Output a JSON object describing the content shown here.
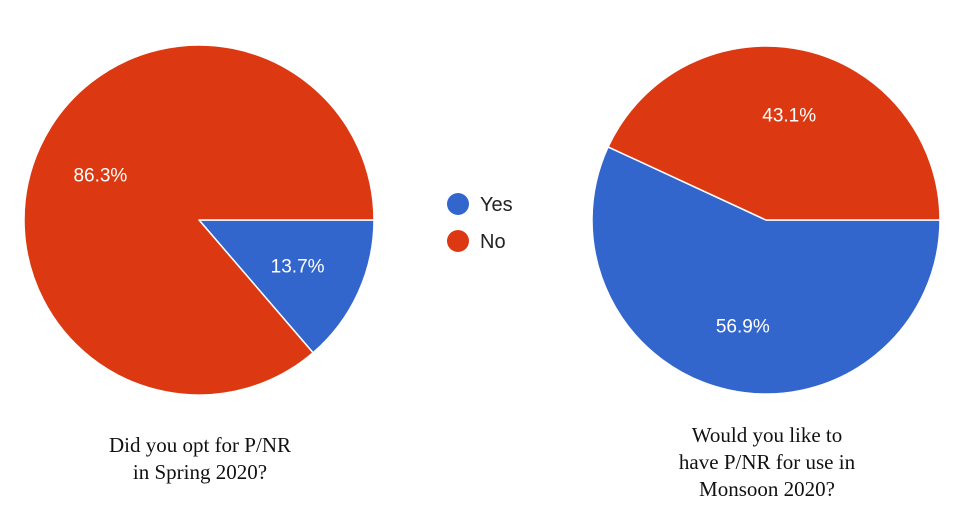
{
  "chart_data": [
    {
      "type": "pie",
      "title_lines": [
        "Did you opt for P/NR",
        "in Spring 2020?"
      ],
      "slices": [
        {
          "name": "Yes",
          "value": 13.7,
          "label": "13.7%",
          "color": "#3366cc"
        },
        {
          "name": "No",
          "value": 86.3,
          "label": "86.3%",
          "color": "#dc3912"
        }
      ]
    },
    {
      "type": "pie",
      "title_lines": [
        "Would you like to",
        "have P/NR for use in",
        "Monsoon 2020?"
      ],
      "slices": [
        {
          "name": "Yes",
          "value": 56.9,
          "label": "56.9%",
          "color": "#3366cc"
        },
        {
          "name": "No",
          "value": 43.1,
          "label": "43.1%",
          "color": "#dc3912"
        }
      ]
    }
  ],
  "legend": {
    "placement": "center",
    "items": [
      {
        "label": "Yes",
        "color": "#3366cc"
      },
      {
        "label": "No",
        "color": "#dc3912"
      }
    ]
  }
}
